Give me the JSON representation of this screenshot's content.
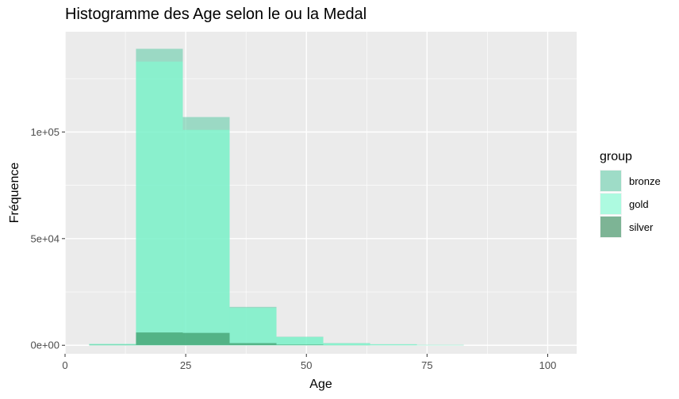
{
  "chart_data": {
    "type": "histogram",
    "title": "Histogramme des  Age selon le ou la  Medal",
    "xlabel": "Age",
    "ylabel": "Fréquence",
    "xlim": [
      0,
      106
    ],
    "ylim": [
      -4000,
      147000
    ],
    "x_ticks": [
      0,
      25,
      50,
      75,
      100
    ],
    "x_tick_labels": [
      "0",
      "25",
      "50",
      "75",
      "100"
    ],
    "y_ticks": [
      0,
      50000,
      100000
    ],
    "y_tick_labels": [
      "0e+00",
      "5e+04",
      "1e+05"
    ],
    "grid": true,
    "legend_position": "right",
    "legend_title": "group",
    "bins": [
      [
        5,
        14.7
      ],
      [
        14.7,
        24.4
      ],
      [
        24.4,
        34.1
      ],
      [
        34.1,
        43.8
      ],
      [
        43.8,
        53.5
      ],
      [
        53.5,
        63.2
      ],
      [
        63.2,
        72.9
      ],
      [
        72.9,
        82.6
      ]
    ],
    "series": [
      {
        "name": "bronze",
        "color": "#66cdaa",
        "values": [
          600,
          139000,
          107000,
          18000,
          4000,
          1000,
          500,
          200
        ]
      },
      {
        "name": "gold",
        "color": "#7fffd4",
        "values": [
          600,
          133000,
          101000,
          17500,
          3800,
          900,
          450,
          150
        ]
      },
      {
        "name": "silver",
        "color": "#2e8b57",
        "values": [
          200,
          6000,
          5800,
          1000,
          300,
          100,
          50,
          20
        ]
      }
    ]
  }
}
